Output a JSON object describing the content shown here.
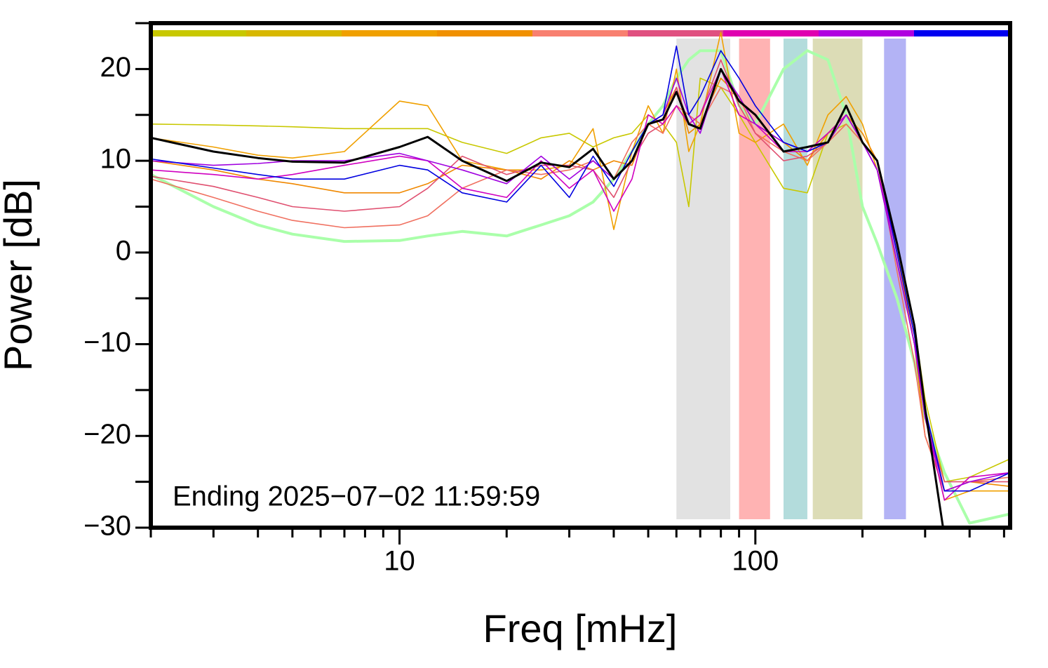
{
  "chart_data": {
    "type": "line",
    "xlabel": "Freq [mHz]",
    "ylabel": "Power [dB]",
    "annotation": "Ending 2025−07−02 11:59:59",
    "xscale": "log",
    "xlim": [
      2,
      520
    ],
    "ylim": [
      -30,
      25
    ],
    "xticks": [
      10,
      100
    ],
    "xticks_minor": [
      2,
      3,
      4,
      5,
      6,
      7,
      8,
      9,
      20,
      30,
      40,
      50,
      60,
      70,
      80,
      90,
      200,
      300,
      400,
      500
    ],
    "yticks": [
      {
        "value": -30,
        "label": "−30"
      },
      {
        "value": -20,
        "label": "−20"
      },
      {
        "value": -10,
        "label": "−10"
      },
      0,
      10,
      20
    ],
    "yticks_minor": [
      -25,
      -15,
      -5,
      5,
      15,
      25
    ],
    "bands": [
      {
        "from": 60,
        "to": 85,
        "color": "#e2e2e2"
      },
      {
        "from": 90,
        "to": 110,
        "color": "#ffb3b3"
      },
      {
        "from": 120,
        "to": 140,
        "color": "#b3dcdc"
      },
      {
        "from": 145,
        "to": 200,
        "color": "#dcdcb6"
      },
      {
        "from": 230,
        "to": 265,
        "color": "#b3b3f5"
      }
    ],
    "x": [
      2,
      3,
      4,
      5,
      7,
      10,
      12,
      15,
      20,
      25,
      30,
      35,
      40,
      45,
      50,
      55,
      60,
      65,
      70,
      80,
      90,
      100,
      120,
      140,
      160,
      180,
      200,
      220,
      250,
      280,
      300,
      340,
      400,
      520
    ],
    "series": [
      {
        "color": "#aaffaa",
        "width": 4,
        "values": [
          8.5,
          5,
          3,
          2,
          1.2,
          1.3,
          1.8,
          2.3,
          1.8,
          3,
          4,
          5.5,
          8,
          11,
          14,
          16,
          19,
          21,
          22,
          22,
          16,
          14,
          20,
          22,
          21,
          15,
          5,
          1,
          -5,
          -12,
          -18,
          -24,
          -29.5,
          -28.5
        ]
      },
      {
        "color": "#c8c800",
        "width": 1.6,
        "values": [
          14,
          13.9,
          13.8,
          13.7,
          13.5,
          13.5,
          13.5,
          12,
          10.8,
          12.5,
          13,
          11.5,
          12.5,
          13,
          15,
          14,
          12,
          5,
          19,
          18,
          15,
          12,
          7,
          6.5,
          13,
          14,
          12,
          10,
          0,
          -8,
          -16,
          -25,
          -24.5,
          -22.5
        ]
      },
      {
        "color": "#f0a000",
        "width": 1.6,
        "values": [
          12.5,
          11.5,
          10.6,
          10.3,
          11,
          16.5,
          16,
          10,
          9,
          9,
          9.5,
          13.5,
          2.5,
          11,
          16,
          13,
          20,
          11,
          14,
          24,
          13,
          12,
          14,
          9.5,
          15,
          17,
          14,
          9,
          -1,
          -10,
          -18,
          -27,
          -26,
          -26
        ]
      },
      {
        "color": "#f08800",
        "width": 1.6,
        "values": [
          10,
          9,
          8,
          7.5,
          6.5,
          6.5,
          7.5,
          9.5,
          9,
          8,
          10,
          9,
          10,
          9.5,
          14,
          15,
          18,
          13,
          14,
          19,
          17,
          14,
          12,
          10,
          13,
          15,
          13,
          10,
          0,
          -10,
          -20,
          -26,
          -25,
          -25.5
        ]
      },
      {
        "color": "#f07060",
        "width": 1.6,
        "values": [
          8,
          6,
          4.5,
          3.5,
          2.7,
          3,
          4,
          7,
          9,
          8.5,
          9,
          10,
          8,
          12,
          14,
          13,
          16,
          15,
          14,
          18,
          17,
          13,
          11,
          10,
          12,
          14,
          12,
          10,
          -2,
          -12,
          -20,
          -26,
          -25,
          -24.5
        ]
      },
      {
        "color": "#e05070",
        "width": 1.6,
        "values": [
          8.3,
          7.2,
          6,
          5,
          4.5,
          5,
          7,
          10.5,
          8.5,
          9.5,
          9.5,
          9,
          6,
          10,
          13,
          14,
          18,
          14,
          15,
          21,
          16,
          13,
          10,
          10.5,
          12,
          15,
          12,
          9,
          -1,
          -10,
          -18,
          -25,
          -25,
          -25
        ]
      },
      {
        "color": "#d000c0",
        "width": 1.6,
        "values": [
          9,
          8.5,
          8,
          8.5,
          9.5,
          10.5,
          10,
          7,
          6,
          10,
          7,
          9,
          4.5,
          8,
          15,
          14,
          16,
          14,
          15,
          20,
          15,
          14,
          11,
          11,
          13,
          15,
          12,
          9,
          0,
          -9,
          -18,
          -27,
          -24.5,
          -24
        ]
      },
      {
        "color": "#a000e0",
        "width": 1.6,
        "values": [
          10,
          9.5,
          9.7,
          10,
          10,
          10.8,
          10,
          9,
          7.5,
          10.5,
          8,
          10,
          8,
          10,
          14,
          15,
          19,
          15,
          13,
          20,
          17,
          14,
          12,
          11,
          12,
          15,
          12,
          9,
          -1,
          -10,
          -18,
          -26,
          -25,
          -24
        ]
      },
      {
        "color": "#0000e0",
        "width": 1.6,
        "values": [
          10.2,
          9.2,
          8.5,
          8,
          8,
          9.5,
          9,
          6.5,
          5.5,
          9.5,
          6,
          10.5,
          7.2,
          11,
          14,
          15,
          22.5,
          15,
          17,
          22,
          19,
          16,
          12,
          11,
          12,
          16,
          12,
          10,
          0,
          -9,
          -17,
          -26,
          -26,
          -24
        ]
      },
      {
        "color": "#000000",
        "width": 3,
        "values": [
          12.5,
          11,
          10.3,
          9.9,
          9.8,
          11.5,
          12.6,
          10,
          7.8,
          9.8,
          9.3,
          11.3,
          8,
          10,
          14,
          14.5,
          17.5,
          14,
          13.5,
          20,
          16.5,
          15,
          11,
          11.5,
          12,
          16,
          12,
          10,
          1,
          -8,
          -17,
          -31,
          null,
          null
        ]
      }
    ]
  }
}
